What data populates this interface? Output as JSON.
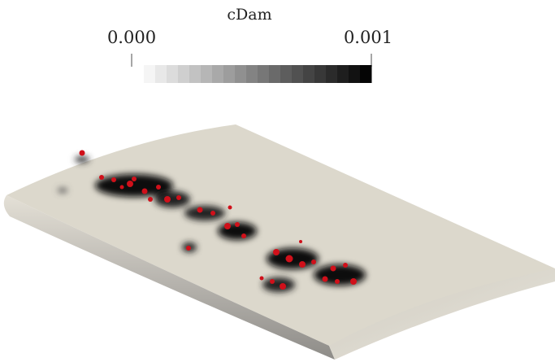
{
  "colorbar": {
    "title": "cDam",
    "min_label": "0.000",
    "max_label": "0.001"
  }
}
